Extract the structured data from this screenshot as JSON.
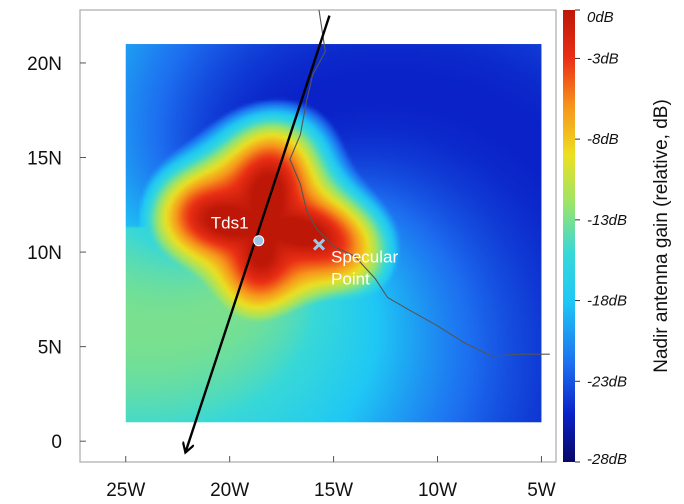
{
  "chart_data": {
    "type": "heatmap",
    "title": "",
    "xlabel": "",
    "ylabel": "",
    "x_ticks": [
      {
        "value": -25,
        "label": "25W"
      },
      {
        "value": -20,
        "label": "20W"
      },
      {
        "value": -15,
        "label": "15W"
      },
      {
        "value": -10,
        "label": "10W"
      },
      {
        "value": -5,
        "label": "5W"
      }
    ],
    "y_ticks": [
      {
        "value": 0,
        "label": "0"
      },
      {
        "value": 5,
        "label": "5N"
      },
      {
        "value": 10,
        "label": "10N"
      },
      {
        "value": 15,
        "label": "15N"
      },
      {
        "value": 20,
        "label": "20N"
      }
    ],
    "xlim": [
      -27.2,
      -4.3
    ],
    "ylim": [
      -1.1,
      22.8
    ],
    "heatmap_extent": {
      "lon": [
        -25.0,
        -5.0
      ],
      "lat": [
        1.0,
        21.0
      ]
    },
    "colorbar": {
      "label": "Nadir antenna gain (relative, dB)",
      "range": [
        -28,
        0
      ],
      "ticks": [
        {
          "value": 0,
          "label": "0dB"
        },
        {
          "value": -3,
          "label": "-3dB"
        },
        {
          "value": -8,
          "label": "-8dB"
        },
        {
          "value": -13,
          "label": "-13dB"
        },
        {
          "value": -18,
          "label": "-18dB"
        },
        {
          "value": -23,
          "label": "-23dB"
        },
        {
          "value": -28,
          "label": "-28dB"
        }
      ],
      "colors": [
        {
          "value": -28,
          "color": "#080866"
        },
        {
          "value": -25,
          "color": "#0a22c8"
        },
        {
          "value": -22,
          "color": "#1d6ef0"
        },
        {
          "value": -18,
          "color": "#1fc8f5"
        },
        {
          "value": -15,
          "color": "#38d8d8"
        },
        {
          "value": -12,
          "color": "#9be46a"
        },
        {
          "value": -9,
          "color": "#ece021"
        },
        {
          "value": -6,
          "color": "#f7951c"
        },
        {
          "value": -3,
          "color": "#ea2f15"
        },
        {
          "value": 0,
          "color": "#bd1708"
        }
      ]
    },
    "peak": {
      "lon": -18.3,
      "lat": 11.3,
      "gain_db": 0
    },
    "ground_track": {
      "start": {
        "lon": -15.2,
        "lat": 22.5
      },
      "end": {
        "lon": -22.1,
        "lat": -0.5
      }
    },
    "annotations": [
      {
        "text": "Tds1",
        "lon": -18.6,
        "lat": 10.6,
        "marker": "dot"
      },
      {
        "text": "Specular Point",
        "lon": -15.7,
        "lat": 10.4,
        "marker": "x"
      }
    ],
    "coastline": [
      [
        -15.7,
        22.8
      ],
      [
        -15.4,
        20.6
      ],
      [
        -16.0,
        19.4
      ],
      [
        -16.3,
        18.0
      ],
      [
        -16.6,
        16.2
      ],
      [
        -17.1,
        14.9
      ],
      [
        -16.6,
        13.6
      ],
      [
        -16.3,
        12.2
      ],
      [
        -15.8,
        11.2
      ],
      [
        -15.0,
        10.3
      ],
      [
        -14.0,
        9.8
      ],
      [
        -13.0,
        8.6
      ],
      [
        -12.4,
        7.6
      ],
      [
        -11.3,
        6.9
      ],
      [
        -10.0,
        6.1
      ],
      [
        -8.7,
        5.2
      ],
      [
        -7.4,
        4.5
      ],
      [
        -6.0,
        4.6
      ],
      [
        -4.6,
        4.6
      ]
    ],
    "colors": {
      "track": "#000000",
      "coast": "#555555",
      "marker_tds1": "#9ec7e6",
      "marker_sp": "#9ec7e6"
    }
  }
}
